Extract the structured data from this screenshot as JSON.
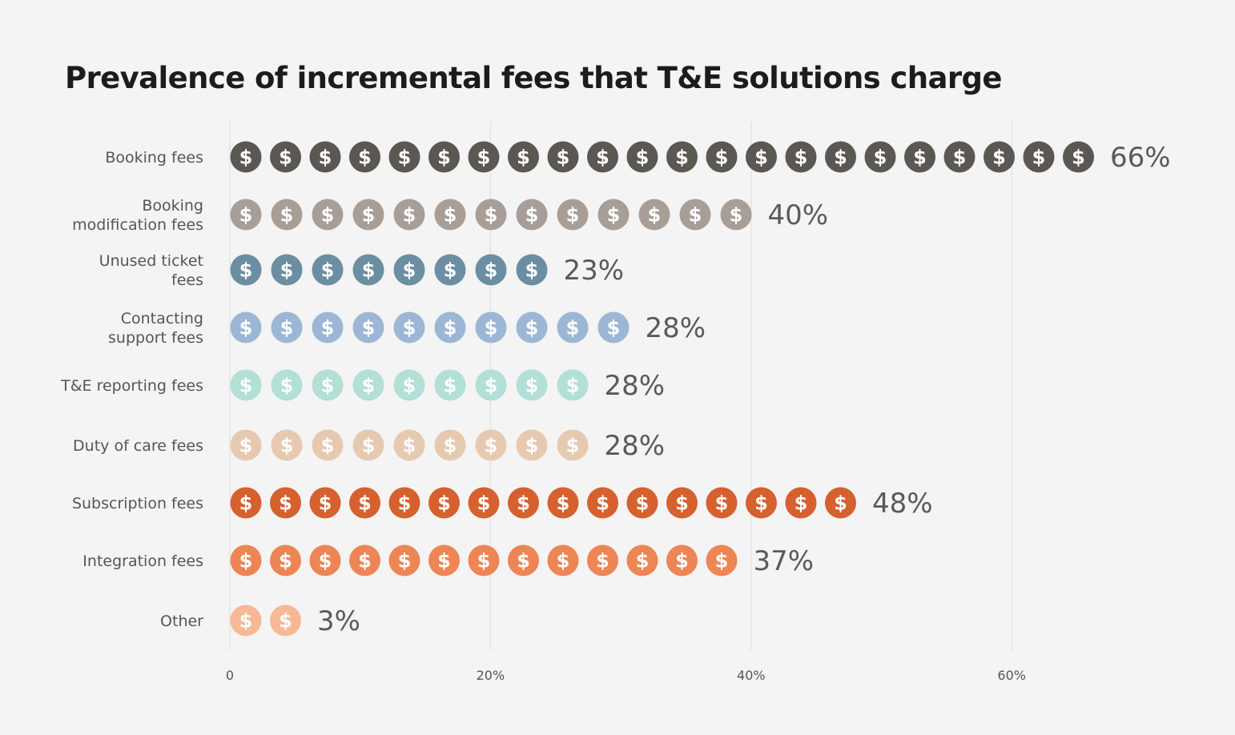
{
  "chart_data": {
    "type": "bar",
    "title": "Prevalence of incremental fees that T&E solutions charge",
    "xlabel": "",
    "ylabel": "",
    "xlim": [
      0,
      72
    ],
    "grid": true,
    "ticks": [
      {
        "value": 0,
        "label": "0"
      },
      {
        "value": 20,
        "label": "20%"
      },
      {
        "value": 40,
        "label": "40%"
      },
      {
        "value": 60,
        "label": "60%"
      }
    ],
    "units_per_icon": 3,
    "icon": "dollar-coin-icon",
    "icon_glyph": "$",
    "categories": [
      {
        "label": [
          "Booking fees"
        ],
        "value": 66,
        "value_label": "66%",
        "icons": 22,
        "color": "#5b5753",
        "glyph_color": "#ffffff"
      },
      {
        "label": [
          "Booking",
          "modification fees"
        ],
        "value": 40,
        "value_label": "40%",
        "icons": 13,
        "color": "#a89e98",
        "glyph_color": "#ffffff"
      },
      {
        "label": [
          "Unused ticket",
          "fees"
        ],
        "value": 23,
        "value_label": "23%",
        "icons": 8,
        "color": "#6c8ea2",
        "glyph_color": "#ffffff"
      },
      {
        "label": [
          "Contacting",
          "support fees"
        ],
        "value": 28,
        "value_label": "28%",
        "icons": 10,
        "color": "#9cb7d5",
        "glyph_color": "#ffffff"
      },
      {
        "label": [
          "T&E reporting fees"
        ],
        "value": 28,
        "value_label": "28%",
        "icons": 9,
        "color": "#b2dfd6",
        "glyph_color": "#ffffff"
      },
      {
        "label": [
          "Duty of care fees"
        ],
        "value": 28,
        "value_label": "28%",
        "icons": 9,
        "color": "#e6cab0",
        "glyph_color": "#ffffff"
      },
      {
        "label": [
          "Subscription fees"
        ],
        "value": 48,
        "value_label": "48%",
        "icons": 16,
        "color": "#d6602e",
        "glyph_color": "#ffffff"
      },
      {
        "label": [
          "Integration fees"
        ],
        "value": 37,
        "value_label": "37%",
        "icons": 13,
        "color": "#ee8554",
        "glyph_color": "#ffffff"
      },
      {
        "label": [
          "Other"
        ],
        "value": 3,
        "value_label": "3%",
        "icons": 2,
        "color": "#f7b894",
        "glyph_color": "#ffffff"
      }
    ]
  }
}
